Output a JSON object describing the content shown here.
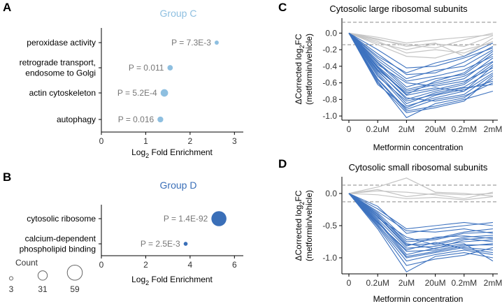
{
  "panel_letters": {
    "A": "A",
    "B": "B",
    "C": "C",
    "D": "D"
  },
  "count_legend": {
    "title": "Count",
    "sizes": [
      3,
      31,
      59
    ],
    "labels": [
      "3",
      "31",
      "59"
    ]
  },
  "chart_data": [
    {
      "panel": "A",
      "type": "scatter",
      "title": "Group C",
      "title_color": "#8ebfe0",
      "point_color": "#8ebfe0",
      "xlabel_main": "Log",
      "xlabel_sub": "2",
      "xlabel_rest": " Fold Enrichment",
      "xlim": [
        0,
        3.2
      ],
      "xticks": [
        0,
        1,
        2,
        3
      ],
      "xtick_labels": [
        "0",
        "1",
        "2",
        "3"
      ],
      "categories": [
        {
          "label_lines": [
            "peroxidase activity"
          ],
          "x": 2.6,
          "count": 6,
          "p_label": "P = 7.3E-3"
        },
        {
          "label_lines": [
            "retrograde transport,",
            "endosome to Golgi"
          ],
          "x": 1.55,
          "count": 12,
          "p_label": "P = 0.011"
        },
        {
          "label_lines": [
            "actin cytoskeleton"
          ],
          "x": 1.42,
          "count": 22,
          "p_label": "P = 5.2E-4"
        },
        {
          "label_lines": [
            "autophagy"
          ],
          "x": 1.33,
          "count": 14,
          "p_label": "P = 0.016"
        }
      ]
    },
    {
      "panel": "B",
      "type": "scatter",
      "title": "Group D",
      "title_color": "#3a6fb8",
      "point_color": "#3a6fb8",
      "xlabel_main": "Log",
      "xlabel_sub": "2",
      "xlabel_rest": " Fold Enrichment",
      "xlim": [
        0,
        6.4
      ],
      "xticks": [
        0,
        2,
        4,
        6
      ],
      "xtick_labels": [
        "0",
        "2",
        "4",
        "6"
      ],
      "categories": [
        {
          "label_lines": [
            "cytosolic ribosome"
          ],
          "x": 5.3,
          "count": 59,
          "p_label": "P = 1.4E-92"
        },
        {
          "label_lines": [
            "calcium-dependent",
            "phospholipid binding"
          ],
          "x": 3.8,
          "count": 5,
          "p_label": "P = 2.5E-3"
        }
      ]
    },
    {
      "panel": "C",
      "type": "line",
      "title": "Cytosolic large ribosomal subunits",
      "ylabel_line1_main": "ΔCorrected log",
      "ylabel_line1_sub": "2",
      "ylabel_line1_rest": "FC",
      "ylabel_line2": "(metformin/vehicle)",
      "xlabel": "Metformin concentration",
      "categories": [
        "0",
        "0.2uM",
        "2uM",
        "20uM",
        "0.2mM",
        "2mM"
      ],
      "ylim": [
        -1.05,
        0.18
      ],
      "yticks": [
        0.0,
        -0.2,
        -0.4,
        -0.6,
        -0.8,
        -1.0
      ],
      "ytick_labels": [
        "0.0",
        "-0.2",
        "-0.4",
        "-0.6",
        "-0.8",
        "-1.0"
      ],
      "thresholds": [
        0.13,
        -0.14
      ],
      "gray_color": "#c4c4c4",
      "blue_color": "#3d72bf",
      "gray_series": [
        [
          0,
          -0.12,
          -0.2,
          -0.13,
          -0.16,
          -0.03
        ],
        [
          0,
          -0.08,
          -0.14,
          -0.18,
          -0.08,
          0.0
        ],
        [
          0,
          -0.1,
          -0.24,
          -0.2,
          -0.24,
          -0.1
        ],
        [
          0,
          -0.05,
          -0.12,
          -0.08,
          -0.05,
          -0.02
        ],
        [
          0,
          -0.14,
          -0.28,
          -0.3,
          -0.2,
          -0.12
        ],
        [
          0,
          -0.07,
          -0.16,
          -0.12,
          -0.28,
          -0.06
        ]
      ],
      "blue_series": [
        [
          0,
          -0.3,
          -0.55,
          -0.45,
          -0.4,
          -0.2
        ],
        [
          0,
          -0.35,
          -0.65,
          -0.55,
          -0.5,
          -0.25
        ],
        [
          0,
          -0.4,
          -0.7,
          -0.62,
          -0.55,
          -0.3
        ],
        [
          0,
          -0.42,
          -0.75,
          -0.68,
          -0.6,
          -0.35
        ],
        [
          0,
          -0.45,
          -0.8,
          -0.7,
          -0.62,
          -0.38
        ],
        [
          0,
          -0.48,
          -0.85,
          -0.72,
          -0.65,
          -0.45
        ],
        [
          0,
          -0.5,
          -0.88,
          -0.78,
          -0.7,
          -0.48
        ],
        [
          0,
          -0.55,
          -0.92,
          -0.8,
          -0.74,
          -0.5
        ],
        [
          0,
          -0.58,
          -1.02,
          -0.85,
          -0.78,
          -0.55
        ],
        [
          0,
          -0.6,
          -0.96,
          -0.9,
          -0.82,
          -0.52
        ],
        [
          0,
          -0.62,
          -0.9,
          -0.75,
          -0.68,
          -0.58
        ],
        [
          0,
          -0.38,
          -0.6,
          -0.64,
          -0.58,
          -0.42
        ],
        [
          0,
          -0.25,
          -0.5,
          -0.48,
          -0.35,
          -0.16
        ],
        [
          0,
          -0.33,
          -0.58,
          -0.52,
          -0.44,
          -0.28
        ],
        [
          0,
          -0.44,
          -0.72,
          -0.66,
          -0.7,
          -0.4
        ],
        [
          0,
          -0.52,
          -0.82,
          -0.74,
          -0.66,
          -0.62
        ],
        [
          0,
          -0.2,
          -0.42,
          -0.4,
          -0.3,
          -0.18
        ],
        [
          0,
          -0.28,
          -0.48,
          -0.36,
          -0.28,
          -0.12
        ],
        [
          0,
          -0.46,
          -0.78,
          -0.82,
          -0.76,
          -0.6
        ],
        [
          0,
          -0.56,
          -0.94,
          -0.88,
          -0.8,
          -0.7
        ],
        [
          0,
          -0.36,
          -0.68,
          -0.6,
          -0.52,
          -0.34
        ],
        [
          0,
          -0.41,
          -0.74,
          -0.58,
          -0.48,
          -0.22
        ]
      ]
    },
    {
      "panel": "D",
      "type": "line",
      "title": "Cytosolic small ribosomal subunits",
      "ylabel_line1_main": "ΔCorrected log",
      "ylabel_line1_sub": "2",
      "ylabel_line1_rest": "FC",
      "ylabel_line2": "(metformin/vehicle)",
      "xlabel": "Metformin concentration",
      "categories": [
        "0",
        "0.2uM",
        "2uM",
        "20uM",
        "0.2mM",
        "2mM"
      ],
      "ylim": [
        -1.25,
        0.26
      ],
      "yticks": [
        0.0,
        -0.5,
        -1.0
      ],
      "ytick_labels": [
        "0.0",
        "-0.5",
        "-1.0"
      ],
      "thresholds": [
        0.13,
        -0.13
      ],
      "gray_color": "#c4c4c4",
      "blue_color": "#3d72bf",
      "gray_series": [
        [
          0,
          0.1,
          0.24,
          0.02,
          0.0,
          -0.04
        ],
        [
          0,
          0.04,
          0.02,
          -0.02,
          -0.08,
          0.02
        ],
        [
          0,
          0.06,
          -0.05,
          0.0,
          -0.02,
          0.0
        ],
        [
          0,
          -0.02,
          -0.08,
          -0.06,
          -0.1,
          -0.05
        ]
      ],
      "blue_series": [
        [
          0,
          -0.2,
          -0.62,
          -0.55,
          -0.5,
          -0.45
        ],
        [
          0,
          -0.3,
          -0.72,
          -0.7,
          -0.6,
          -0.55
        ],
        [
          0,
          -0.35,
          -0.8,
          -0.78,
          -0.68,
          -0.65
        ],
        [
          0,
          -0.4,
          -0.85,
          -0.82,
          -0.75,
          -0.72
        ],
        [
          0,
          -0.45,
          -0.9,
          -0.88,
          -0.8,
          -0.8
        ],
        [
          0,
          -0.48,
          -1.0,
          -0.92,
          -0.84,
          -0.88
        ],
        [
          0,
          -0.5,
          -1.05,
          -0.95,
          -0.88,
          -0.95
        ],
        [
          0,
          -0.55,
          -1.22,
          -0.98,
          -0.92,
          -1.0
        ],
        [
          0,
          -0.42,
          -0.95,
          -0.85,
          -0.78,
          -1.05
        ],
        [
          0,
          -0.33,
          -0.75,
          -0.72,
          -0.62,
          -0.6
        ],
        [
          0,
          -0.38,
          -0.68,
          -0.8,
          -0.7,
          -0.75
        ],
        [
          0,
          -0.28,
          -0.58,
          -0.6,
          -0.55,
          -0.62
        ],
        [
          0,
          -0.46,
          -0.88,
          -0.76,
          -0.86,
          -0.92
        ],
        [
          0,
          -0.52,
          -1.12,
          -1.02,
          -0.96,
          -0.84
        ],
        [
          0,
          -0.36,
          -0.82,
          -0.68,
          -0.66,
          -0.7
        ],
        [
          0,
          -0.44,
          -0.98,
          -0.9,
          -0.82,
          -0.78
        ],
        [
          0,
          -0.24,
          -0.55,
          -0.5,
          -0.45,
          -0.5
        ],
        [
          0,
          -0.32,
          -0.78,
          -0.86,
          -0.72,
          -0.68
        ]
      ]
    }
  ]
}
